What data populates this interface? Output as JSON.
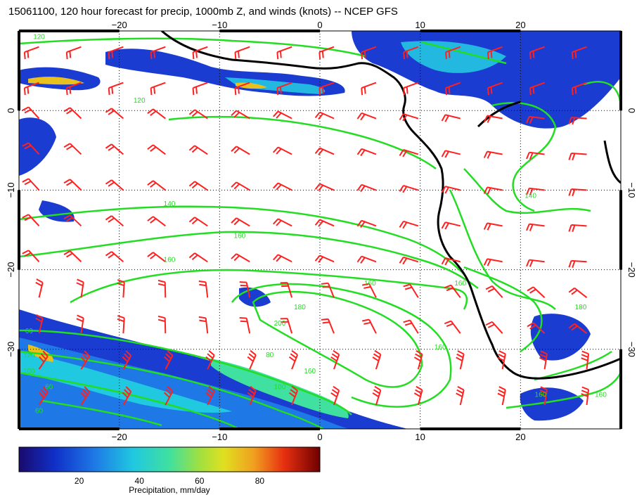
{
  "title": "15061100, 120 hour forecast for precip, 1000mb Z, and winds (knots) -- NCEP GFS",
  "map": {
    "lon_range": [
      -30,
      30
    ],
    "lat_range": [
      -40,
      10
    ],
    "lon_ticks": [
      -20,
      -10,
      0,
      10,
      20
    ],
    "lat_ticks": [
      0,
      -10,
      -20,
      -30
    ],
    "lon_tick_labels": [
      "−20",
      "−10",
      "0",
      "10",
      "20"
    ],
    "lat_tick_labels": [
      "0",
      "−10",
      "−20",
      "−30"
    ],
    "gridlines": "dotted",
    "contour_color": "#22dd22",
    "barb_color": "#ff2020",
    "coast_color": "#000000",
    "contour_labels": [
      "120",
      "120",
      "140",
      "160",
      "160",
      "180",
      "160",
      "160",
      "200",
      "160",
      "140",
      "160",
      "180",
      "160",
      "160",
      "60",
      "60",
      "60",
      "100",
      "120",
      "80",
      "100"
    ]
  },
  "colorbar": {
    "label": "Precipitation, mm/day",
    "range": [
      0,
      100
    ],
    "ticks": [
      "20",
      "40",
      "60",
      "80"
    ],
    "tick_values": [
      20,
      40,
      60,
      80
    ],
    "colors": [
      "#1a0a6e",
      "#1030c8",
      "#1e78e6",
      "#20c8e0",
      "#40e0a0",
      "#a0e040",
      "#e0e020",
      "#f0a020",
      "#e83010",
      "#c00000",
      "#700000"
    ]
  }
}
